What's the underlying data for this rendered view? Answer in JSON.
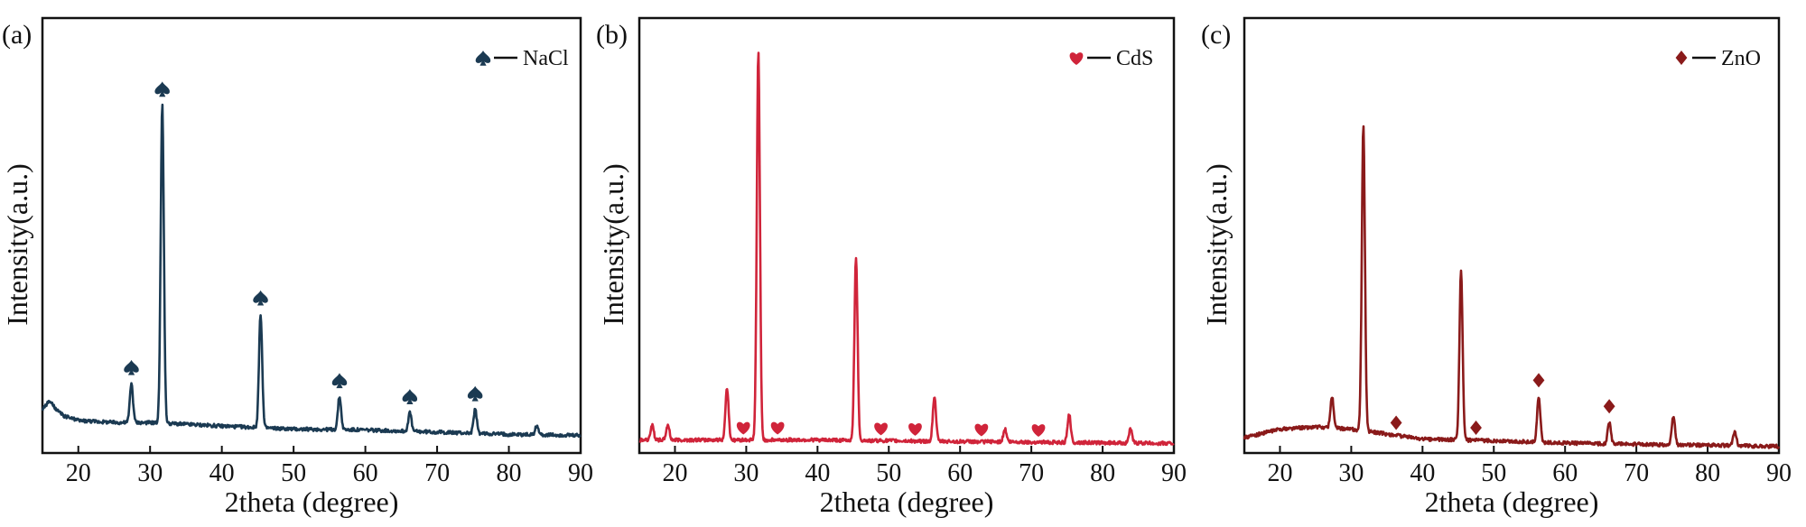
{
  "chart_data": [
    {
      "type": "line",
      "panel_label": "(a)",
      "xlabel": "2theta (degree)",
      "ylabel": "Intensity(a.u.)",
      "xlim": [
        15,
        90
      ],
      "xticks": [
        20,
        30,
        40,
        50,
        60,
        70,
        80,
        90
      ],
      "ylim": [
        0,
        100
      ],
      "y_tick_labels": "none",
      "color": "#1b3a52",
      "legend": {
        "label": "NaCl",
        "marker": "spade",
        "position": "top-right"
      },
      "baseline": [
        [
          15,
          10
        ],
        [
          16,
          12
        ],
        [
          17,
          9.8
        ],
        [
          18,
          8.5
        ],
        [
          20,
          7.5
        ],
        [
          25,
          7
        ],
        [
          30,
          7
        ],
        [
          40,
          6.2
        ],
        [
          50,
          5.5
        ],
        [
          60,
          5.3
        ],
        [
          70,
          4.8
        ],
        [
          80,
          4.3
        ],
        [
          90,
          4
        ]
      ],
      "peaks": [
        {
          "x": 27.4,
          "y": 16,
          "marked": true
        },
        {
          "x": 31.7,
          "y": 80,
          "marked": true
        },
        {
          "x": 45.4,
          "y": 32,
          "marked": true
        },
        {
          "x": 56.4,
          "y": 13,
          "marked": true
        },
        {
          "x": 66.2,
          "y": 9.3,
          "marked": true
        },
        {
          "x": 75.3,
          "y": 10,
          "marked": true
        },
        {
          "x": 83.9,
          "y": 6.3,
          "marked": false
        }
      ]
    },
    {
      "type": "line",
      "panel_label": "(b)",
      "xlabel": "2theta (degree)",
      "ylabel": "Intensity(a.u.)",
      "xlim": [
        15,
        90
      ],
      "xticks": [
        20,
        30,
        40,
        50,
        60,
        70,
        80,
        90
      ],
      "ylim": [
        0,
        100
      ],
      "y_tick_labels": "none",
      "color": "#d0243a",
      "legend": {
        "label": "CdS",
        "marker": "heart",
        "position": "top-right"
      },
      "baseline": [
        [
          15,
          3
        ],
        [
          25,
          3
        ],
        [
          40,
          3
        ],
        [
          55,
          2.7
        ],
        [
          70,
          2.5
        ],
        [
          90,
          2.2
        ]
      ],
      "peaks": [
        {
          "x": 16.8,
          "y": 6.5,
          "marked": false
        },
        {
          "x": 19,
          "y": 6.5,
          "marked": false
        },
        {
          "x": 27.3,
          "y": 15,
          "marked": false
        },
        {
          "x": 31.7,
          "y": 92,
          "marked": false
        },
        {
          "x": 45.4,
          "y": 45,
          "marked": false
        },
        {
          "x": 56.4,
          "y": 13,
          "marked": false
        },
        {
          "x": 66.3,
          "y": 5.5,
          "marked": false
        },
        {
          "x": 75.3,
          "y": 9,
          "marked": false
        },
        {
          "x": 83.9,
          "y": 5.5,
          "marked": false
        }
      ],
      "markers": [
        29.6,
        34.4,
        48.9,
        53.7,
        63,
        71
      ]
    },
    {
      "type": "line",
      "panel_label": "(c)",
      "xlabel": "2theta (degree)",
      "ylabel": "Intensity(a.u.)",
      "xlim": [
        15,
        90
      ],
      "xticks": [
        20,
        30,
        40,
        50,
        60,
        70,
        80,
        90
      ],
      "ylim": [
        0,
        100
      ],
      "y_tick_labels": "none",
      "color": "#8a1a1a",
      "legend": {
        "label": "ZnO",
        "marker": "diamond",
        "position": "top-right"
      },
      "baseline": [
        [
          15,
          3.5
        ],
        [
          20,
          5.5
        ],
        [
          25,
          6
        ],
        [
          30,
          5.5
        ],
        [
          40,
          3.2
        ],
        [
          50,
          2.8
        ],
        [
          60,
          2.3
        ],
        [
          70,
          2
        ],
        [
          80,
          1.8
        ],
        [
          90,
          1.5
        ]
      ],
      "peaks": [
        {
          "x": 27.3,
          "y": 13,
          "marked": false
        },
        {
          "x": 31.7,
          "y": 75,
          "marked": false
        },
        {
          "x": 45.4,
          "y": 42,
          "marked": false
        },
        {
          "x": 56.3,
          "y": 13,
          "marked": true
        },
        {
          "x": 66.2,
          "y": 7,
          "marked": true
        },
        {
          "x": 75.2,
          "y": 8.5,
          "marked": false
        },
        {
          "x": 83.8,
          "y": 5,
          "marked": false
        }
      ],
      "markers": [
        36.3,
        47.5
      ]
    }
  ]
}
